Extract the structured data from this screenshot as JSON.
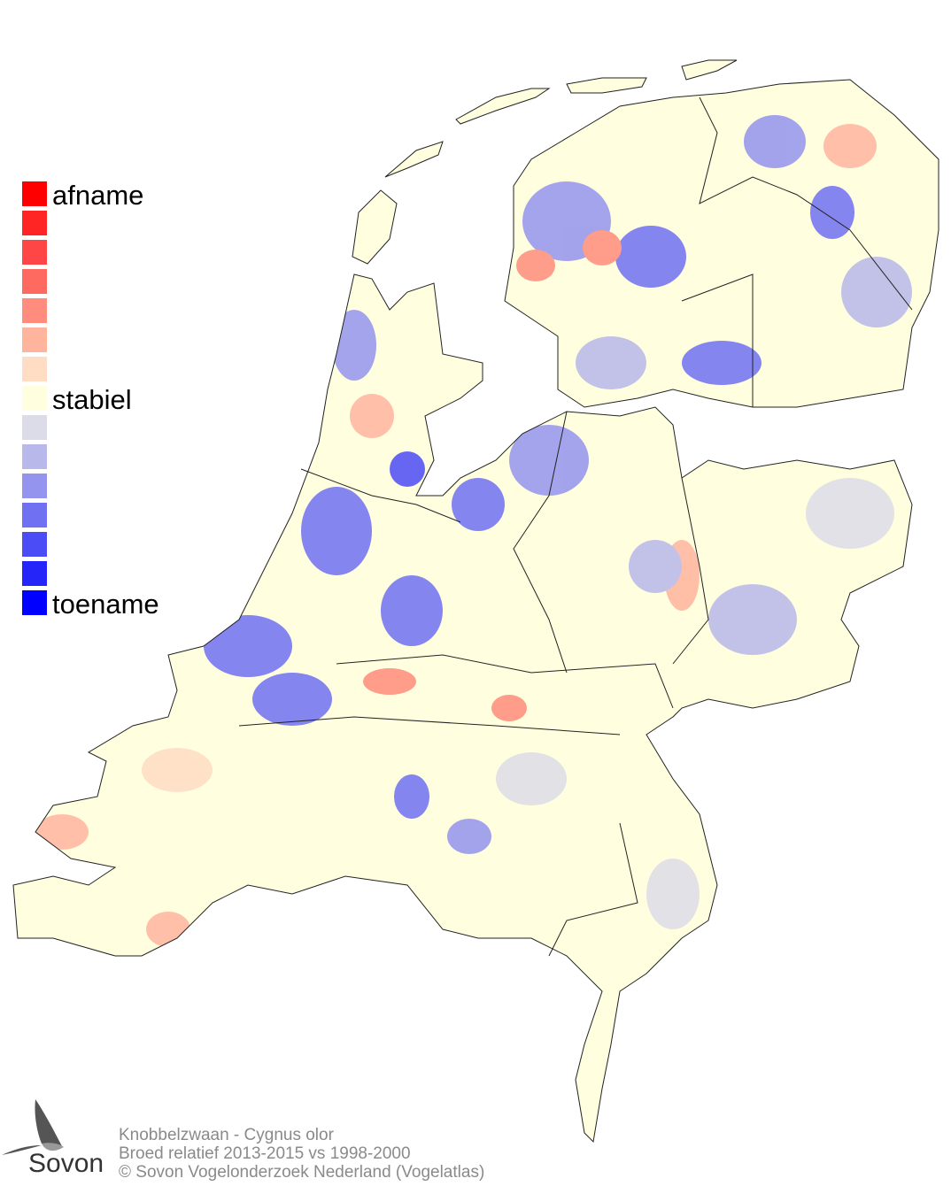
{
  "legend": {
    "title_top": "afname",
    "title_mid": "stabiel",
    "title_bottom": "toename",
    "colors": [
      "#ff0000",
      "#ff2525",
      "#ff4646",
      "#ff6a60",
      "#ff8c7c",
      "#ffb49e",
      "#ffdcc4",
      "#ffffe0",
      "#dcdce8",
      "#b8b8ea",
      "#9494ee",
      "#7070f2",
      "#4c4cf6",
      "#2525fa",
      "#0000ff"
    ]
  },
  "credits": {
    "species": "Knobbelzwaan - Cygnus olor",
    "comparison": "Broed relatief 2013-2015 vs 1998-2000",
    "copyright": "© Sovon Vogelonderzoek Nederland (Vogelatlas)"
  },
  "logo": {
    "text": "Sovon",
    "icon": "swallow-icon"
  }
}
